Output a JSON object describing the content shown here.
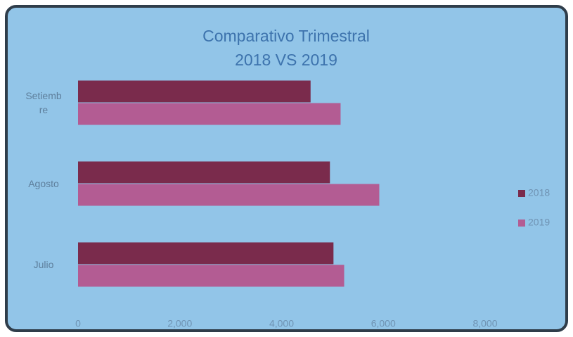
{
  "chart_data": {
    "type": "barh",
    "title": "Comparativo Trimestral 2018 VS 2019",
    "categories": [
      "Julio",
      "Agosto",
      "Setiembre"
    ],
    "series": [
      {
        "name": "2018",
        "color": "#7a2b4c",
        "values": [
          5020,
          4950,
          4570
        ]
      },
      {
        "name": "2019",
        "color": "#b35c93",
        "values": [
          5230,
          5920,
          5160
        ]
      }
    ],
    "xlim": [
      0,
      8000
    ],
    "xticks": [
      0,
      {
        "value": 2000,
        "label": "2,000"
      },
      {
        "value": 4000,
        "label": "4,000"
      },
      {
        "value": 6000,
        "label": "6,000"
      },
      {
        "value": 8000,
        "label": "8,000"
      }
    ],
    "grid": false,
    "legend": "right"
  }
}
